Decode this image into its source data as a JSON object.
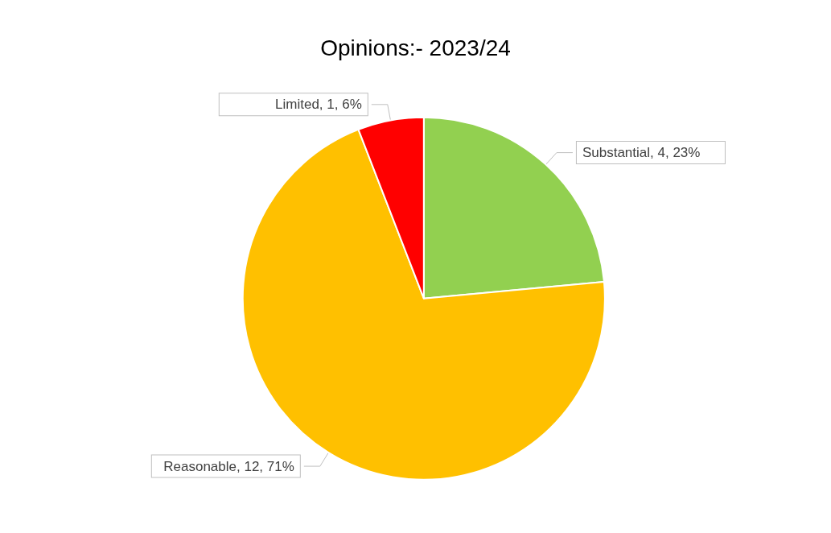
{
  "chart_data": {
    "type": "pie",
    "title": "Opinions:- 2023/24",
    "categories": [
      "Substantial",
      "Reasonable",
      "Limited"
    ],
    "values": [
      4,
      12,
      1
    ],
    "colors": [
      "#92d050",
      "#ffc000",
      "#ff0000"
    ],
    "value_labels": [
      "4, 23%",
      "12, 71%",
      "1, 6%"
    ],
    "legend": false
  }
}
